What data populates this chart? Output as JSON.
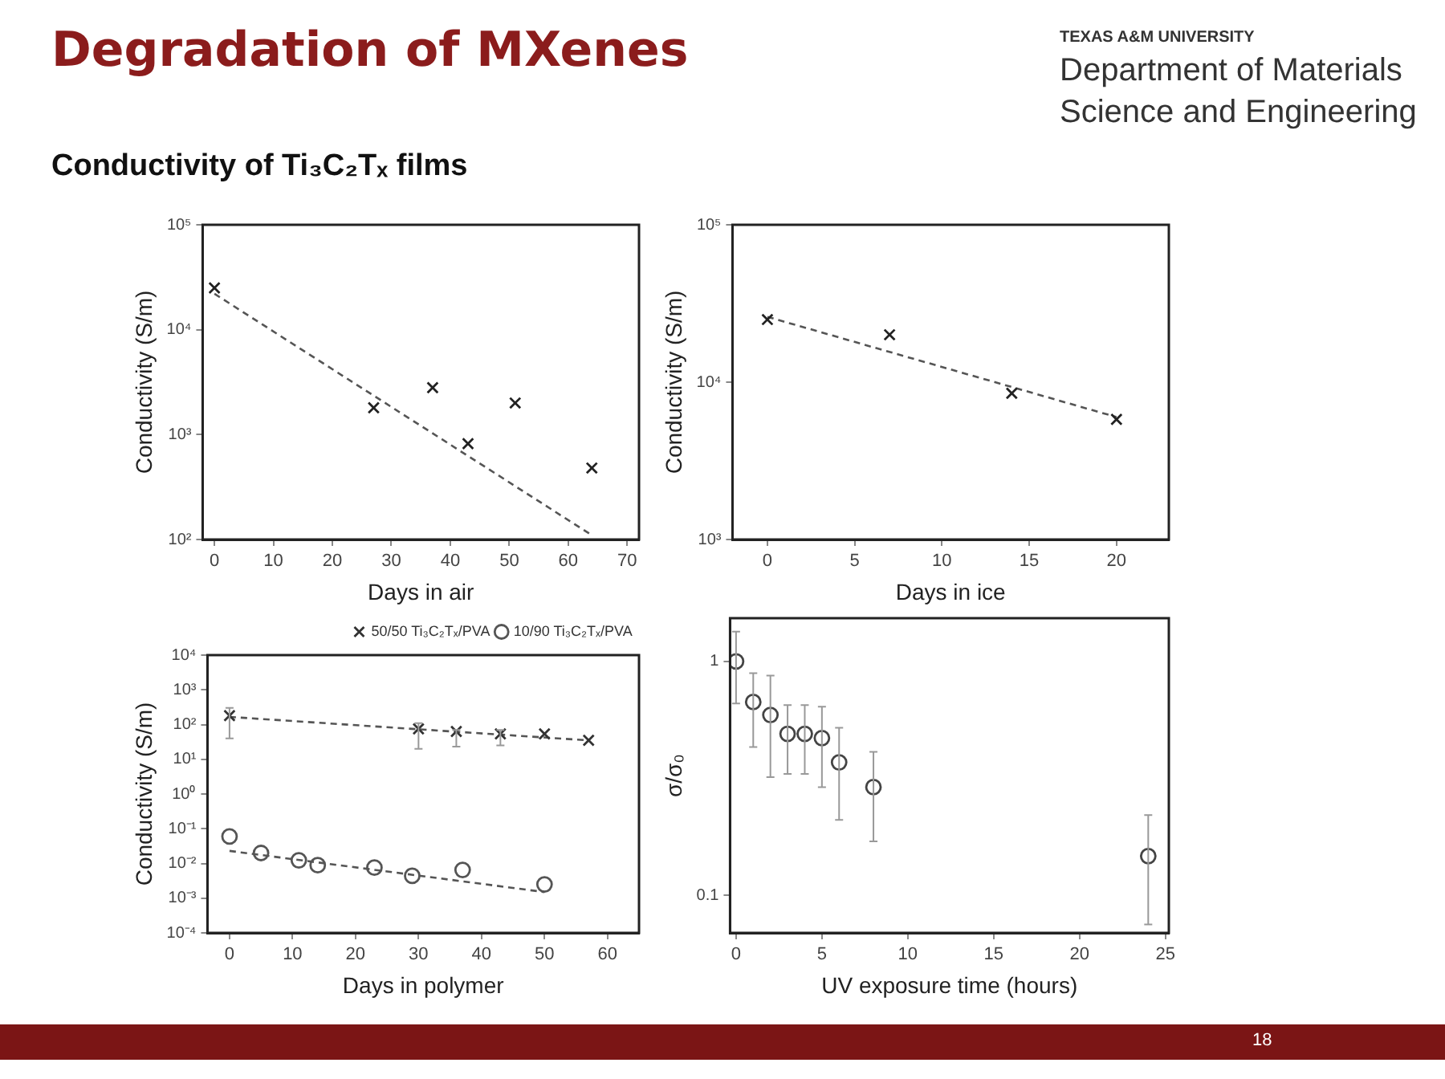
{
  "chart_data": [
    {
      "type": "scatter",
      "title": "Degradation of MXenes",
      "subtitle": "Conductivity of Ti₃C₂Tₓ films",
      "annotations": [
        "TEXAS A&M UNIVERSITY",
        "Department of Materials",
        "Science and Engineering",
        "18"
      ],
      "xlabel": "Days in air",
      "ylabel": "Conductivity (S/m)",
      "log": "y",
      "grid": false,
      "legend": false,
      "xlim": [
        -2,
        72
      ],
      "xticks": [
        0,
        10,
        20,
        30,
        40,
        50,
        60,
        70
      ],
      "ylim": [
        100,
        100000
      ],
      "yticks": [
        {
          "value": 100,
          "label": "10²"
        },
        {
          "value": 1000,
          "label": "10³"
        },
        {
          "value": 10000,
          "label": "10⁴"
        },
        {
          "value": 100000,
          "label": "10⁵"
        }
      ],
      "series": [
        {
          "type": "scatter",
          "marker": "cross",
          "color": "#222222",
          "x": [
            0,
            27,
            37,
            43,
            51,
            64
          ],
          "values": [
            25000,
            1800,
            2800,
            820,
            2000,
            480
          ]
        },
        {
          "type": "line",
          "line_style": "dashed",
          "color": "#555555",
          "x": [
            0,
            64
          ],
          "values": [
            22000,
            110
          ]
        }
      ]
    },
    {
      "type": "scatter",
      "xlabel": "Days in ice",
      "ylabel": "Conductivity (S/m)",
      "log": "y",
      "grid": false,
      "legend": false,
      "xlim": [
        -2,
        23
      ],
      "xticks": [
        0,
        5,
        10,
        15,
        20
      ],
      "ylim": [
        1000,
        100000
      ],
      "yticks": [
        {
          "value": 1000,
          "label": "10³"
        },
        {
          "value": 10000,
          "label": "10⁴"
        },
        {
          "value": 100000,
          "label": "10⁵"
        }
      ],
      "series": [
        {
          "type": "scatter",
          "marker": "cross",
          "color": "#222222",
          "x": [
            0,
            7,
            14,
            20
          ],
          "values": [
            25000,
            20000,
            8500,
            5800
          ]
        },
        {
          "type": "line",
          "line_style": "dashed",
          "color": "#555555",
          "x": [
            0,
            20
          ],
          "values": [
            26000,
            6000
          ]
        }
      ]
    },
    {
      "type": "scatter",
      "xlabel": "Days in polymer",
      "ylabel": "Conductivity (S/m)",
      "log": "y",
      "grid": false,
      "legend": "top right",
      "xlim": [
        -3.5,
        65
      ],
      "xticks": [
        0,
        10,
        20,
        30,
        40,
        50,
        60
      ],
      "ylim": [
        0.0001,
        10000
      ],
      "yticks": [
        {
          "value": 0.0001,
          "label": "10⁻⁴"
        },
        {
          "value": 0.001,
          "label": "10⁻³"
        },
        {
          "value": 0.01,
          "label": "10⁻²"
        },
        {
          "value": 0.1,
          "label": "10⁻¹"
        },
        {
          "value": 1,
          "label": "10⁰"
        },
        {
          "value": 10,
          "label": "10¹"
        },
        {
          "value": 100,
          "label": "10²"
        },
        {
          "value": 1000,
          "label": "10³"
        },
        {
          "value": 10000,
          "label": "10⁴"
        }
      ],
      "series": [
        {
          "type": "scatter",
          "name": "50/50 Ti₃C₂Tₓ/PVA",
          "marker": "cross",
          "color": "#333333",
          "x": [
            0,
            30,
            36,
            43,
            50,
            57
          ],
          "values": [
            180,
            75,
            63,
            54,
            54,
            35
          ],
          "errors": [
            [
              40,
              300
            ],
            [
              20,
              110
            ],
            [
              23,
              70
            ],
            [
              25,
              70
            ],
            null,
            null
          ]
        },
        {
          "type": "scatter",
          "name": "10/90 Ti₃C₂Tₓ/PVA",
          "marker": "circle",
          "color": "#555555",
          "x": [
            0,
            5,
            11,
            14,
            23,
            29,
            37,
            50
          ],
          "values": [
            0.06,
            0.02,
            0.0123,
            0.0089,
            0.0076,
            0.0044,
            0.0065,
            0.0025
          ]
        },
        {
          "type": "line",
          "line_style": "dashed",
          "color": "#555555",
          "x": [
            0,
            57
          ],
          "values": [
            166,
            35
          ]
        },
        {
          "type": "line",
          "line_style": "dashed",
          "color": "#555555",
          "x": [
            0,
            50
          ],
          "values": [
            0.023,
            0.0015
          ]
        }
      ]
    },
    {
      "type": "scatter",
      "xlabel": "UV exposure time (hours)",
      "ylabel": "σ/σ₀",
      "log": "y",
      "grid": false,
      "legend": false,
      "xlim": [
        -0.35,
        25.2
      ],
      "xticks": [
        0,
        5,
        10,
        15,
        20,
        25
      ],
      "ylim": [
        0.069,
        1.53
      ],
      "yticks": [
        {
          "value": 0.1,
          "label": "0.1"
        },
        {
          "value": 1,
          "label": "1"
        }
      ],
      "series": [
        {
          "type": "scatter",
          "marker": "circle",
          "color": "#444444",
          "x": [
            0,
            1,
            2,
            3,
            4,
            5,
            6,
            8,
            24
          ],
          "values": [
            1,
            0.67,
            0.59,
            0.49,
            0.49,
            0.47,
            0.37,
            0.29,
            0.147
          ],
          "errors": [
            [
              0.66,
              1.34
            ],
            [
              0.43,
              0.89
            ],
            [
              0.32,
              0.87
            ],
            [
              0.33,
              0.65
            ],
            [
              0.33,
              0.65
            ],
            [
              0.29,
              0.64
            ],
            [
              0.21,
              0.52
            ],
            [
              0.17,
              0.41
            ],
            [
              0.075,
              0.22
            ]
          ]
        }
      ]
    }
  ]
}
